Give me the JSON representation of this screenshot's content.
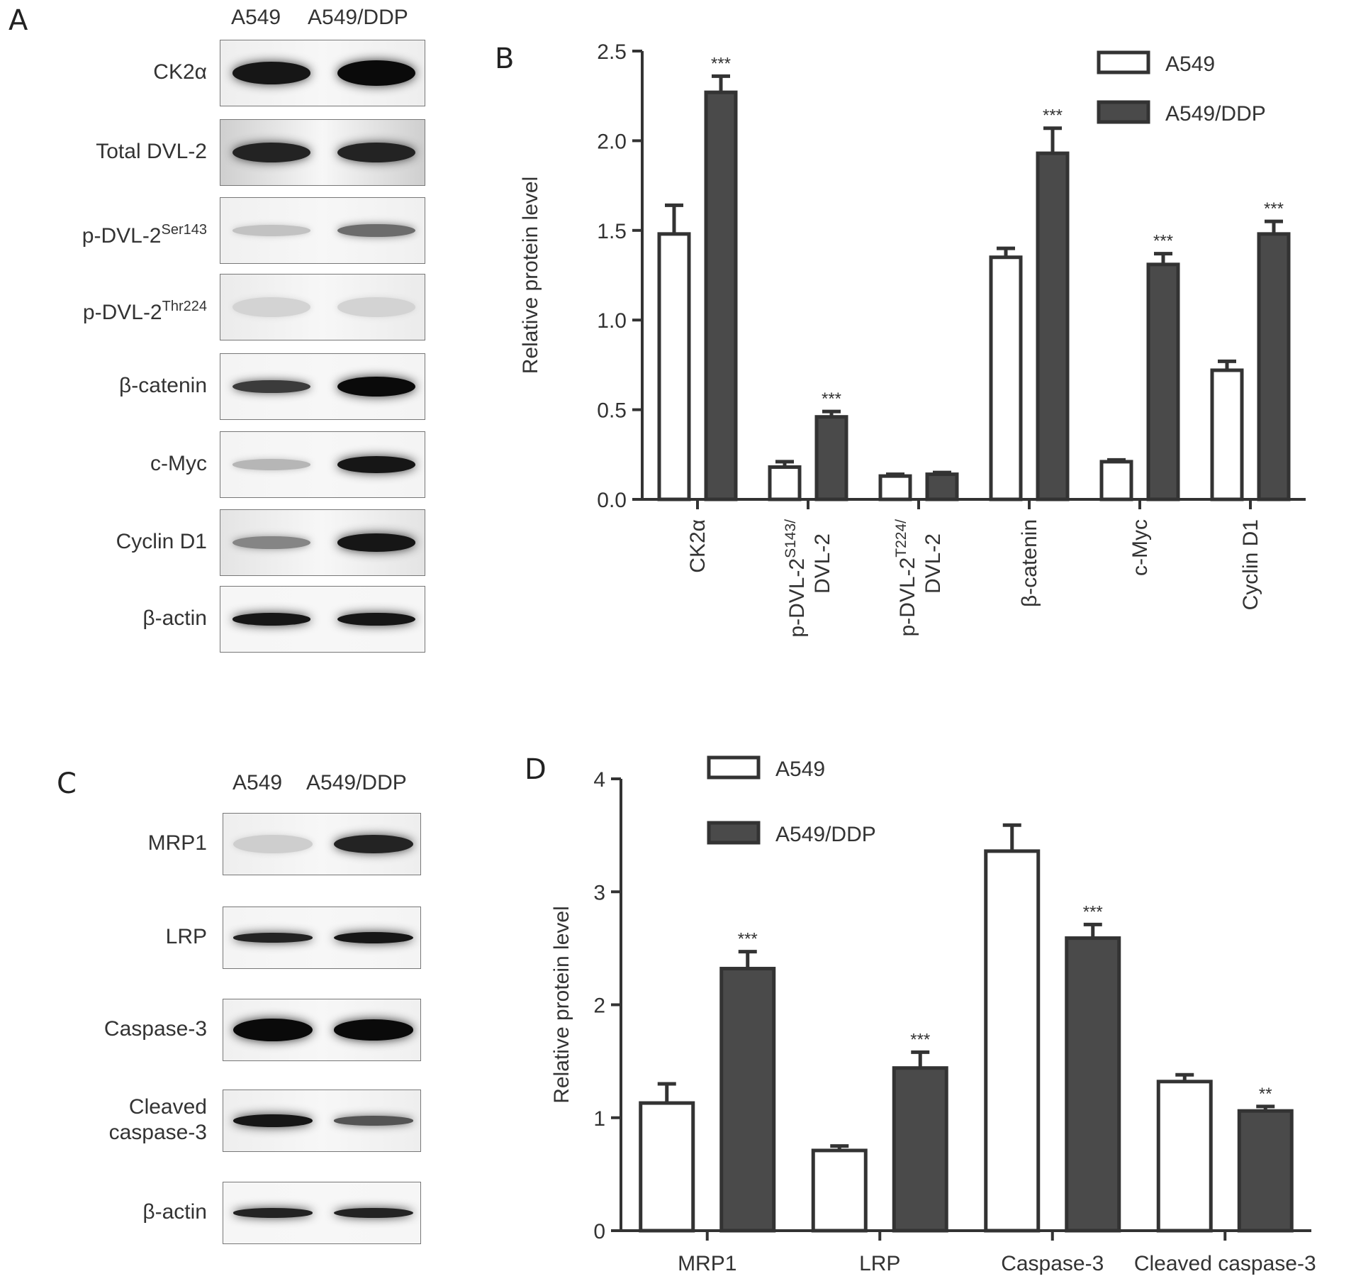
{
  "panels": {
    "A": {
      "letter": "A",
      "lanes": [
        "A549",
        "A549/DDP"
      ],
      "blots": [
        {
          "label": "CK2α",
          "sup": "",
          "bands": [
            {
              "intensity": 0.95,
              "thick": 1.0
            },
            {
              "intensity": 1.0,
              "thick": 1.15
            }
          ],
          "bg": "#eeeeee"
        },
        {
          "label": "Total DVL-2",
          "sup": "",
          "bands": [
            {
              "intensity": 0.9,
              "thick": 0.9
            },
            {
              "intensity": 0.9,
              "thick": 0.9
            }
          ],
          "bg": "#cfcfcf"
        },
        {
          "label": "p-DVL-2",
          "sup": "Ser143",
          "bands": [
            {
              "intensity": 0.25,
              "thick": 0.5
            },
            {
              "intensity": 0.6,
              "thick": 0.6
            }
          ],
          "bg": "#f0f0f0"
        },
        {
          "label": "p-DVL-2",
          "sup": "Thr224",
          "bands": [
            {
              "intensity": 0.18,
              "thick": 0.9
            },
            {
              "intensity": 0.18,
              "thick": 0.9
            }
          ],
          "bg": "#ebebeb"
        },
        {
          "label": "β-catenin",
          "sup": "",
          "bands": [
            {
              "intensity": 0.8,
              "thick": 0.6
            },
            {
              "intensity": 1.0,
              "thick": 0.9
            }
          ],
          "bg": "#f4f4f4"
        },
        {
          "label": "c-Myc",
          "sup": "",
          "bands": [
            {
              "intensity": 0.3,
              "thick": 0.5
            },
            {
              "intensity": 0.95,
              "thick": 0.75
            }
          ],
          "bg": "#f4f4f4"
        },
        {
          "label": "Cyclin D1",
          "sup": "",
          "bands": [
            {
              "intensity": 0.5,
              "thick": 0.6
            },
            {
              "intensity": 0.95,
              "thick": 0.8
            }
          ],
          "bg": "#e4e4e4"
        },
        {
          "label": "β-actin",
          "sup": "",
          "bands": [
            {
              "intensity": 0.95,
              "thick": 0.55
            },
            {
              "intensity": 0.95,
              "thick": 0.6
            }
          ],
          "bg": "#f6f6f6"
        }
      ]
    },
    "C": {
      "letter": "C",
      "lanes": [
        "A549",
        "A549/DDP"
      ],
      "blots": [
        {
          "label": "MRP1",
          "sup": "",
          "bands": [
            {
              "intensity": 0.2,
              "thick": 0.9
            },
            {
              "intensity": 0.9,
              "thick": 0.9
            }
          ],
          "bg": "#eeeeee"
        },
        {
          "label": "LRP",
          "sup": "",
          "bands": [
            {
              "intensity": 0.9,
              "thick": 0.45
            },
            {
              "intensity": 0.95,
              "thick": 0.55
            }
          ],
          "bg": "#f4f4f4"
        },
        {
          "label": "Caspase-3",
          "sup": "",
          "bands": [
            {
              "intensity": 1.0,
              "thick": 1.1
            },
            {
              "intensity": 1.0,
              "thick": 1.0
            }
          ],
          "bg": "#f0f0f0"
        },
        {
          "label": "Cleaved\ncaspase-3",
          "sup": "",
          "bands": [
            {
              "intensity": 0.95,
              "thick": 0.6
            },
            {
              "intensity": 0.7,
              "thick": 0.45
            }
          ],
          "bg": "#eeeeee"
        },
        {
          "label": "β-actin",
          "sup": "",
          "bands": [
            {
              "intensity": 0.9,
              "thick": 0.45
            },
            {
              "intensity": 0.9,
              "thick": 0.5
            }
          ],
          "bg": "#f6f6f6"
        }
      ]
    }
  },
  "chart_data": [
    {
      "panel": "B",
      "type": "bar",
      "ylabel": "Relative protein level",
      "ylim": [
        0,
        2.5
      ],
      "yticks": [
        "0.0",
        "0.5",
        "1.0",
        "1.5",
        "2.0",
        "2.5"
      ],
      "ytick_values": [
        0,
        0.5,
        1.0,
        1.5,
        2.0,
        2.5
      ],
      "categories": [
        {
          "line1": "CK2α",
          "line2": "",
          "sup": ""
        },
        {
          "line1": "p-DVL-2",
          "sup": "S143/",
          "line2": "DVL-2"
        },
        {
          "line1": "p-DVL-2",
          "sup": "T224/",
          "line2": "DVL-2"
        },
        {
          "line1": "β-catenin",
          "line2": "",
          "sup": ""
        },
        {
          "line1": "c-Myc",
          "line2": "",
          "sup": ""
        },
        {
          "line1": "Cyclin D1",
          "line2": "",
          "sup": ""
        }
      ],
      "series": [
        {
          "name": "A549",
          "values": [
            1.48,
            0.18,
            0.13,
            1.35,
            0.21,
            0.72
          ],
          "errors": [
            0.16,
            0.03,
            0.01,
            0.05,
            0.01,
            0.05
          ]
        },
        {
          "name": "A549/DDP",
          "values": [
            2.27,
            0.46,
            0.14,
            1.93,
            1.31,
            1.48
          ],
          "errors": [
            0.09,
            0.03,
            0.01,
            0.14,
            0.06,
            0.07
          ]
        }
      ],
      "significance": [
        "***",
        "***",
        "",
        "***",
        "***",
        "***"
      ],
      "legend_position": "top-right",
      "colors": {
        "A549": "#ffffff",
        "A549/DDP": "#4a4a4a",
        "stroke": "#333333"
      }
    },
    {
      "panel": "D",
      "type": "bar",
      "ylabel": "Relative protein level",
      "ylim": [
        0,
        4
      ],
      "yticks": [
        "0",
        "1",
        "2",
        "3",
        "4"
      ],
      "ytick_values": [
        0,
        1,
        2,
        3,
        4
      ],
      "categories": [
        {
          "line1": "MRP1",
          "line2": "",
          "sup": ""
        },
        {
          "line1": "LRP",
          "line2": "",
          "sup": ""
        },
        {
          "line1": "Caspase-3",
          "line2": "",
          "sup": ""
        },
        {
          "line1": "Cleaved caspase-3",
          "line2": "",
          "sup": ""
        }
      ],
      "series": [
        {
          "name": "A549",
          "values": [
            1.13,
            0.71,
            3.36,
            1.32
          ],
          "errors": [
            0.17,
            0.04,
            0.23,
            0.06
          ]
        },
        {
          "name": "A549/DDP",
          "values": [
            2.32,
            1.44,
            2.59,
            1.06
          ],
          "errors": [
            0.15,
            0.14,
            0.12,
            0.04
          ]
        }
      ],
      "significance": [
        "***",
        "***",
        "***",
        "**"
      ],
      "legend_position": "top-left",
      "colors": {
        "A549": "#ffffff",
        "A549/DDP": "#4a4a4a",
        "stroke": "#333333"
      }
    }
  ]
}
